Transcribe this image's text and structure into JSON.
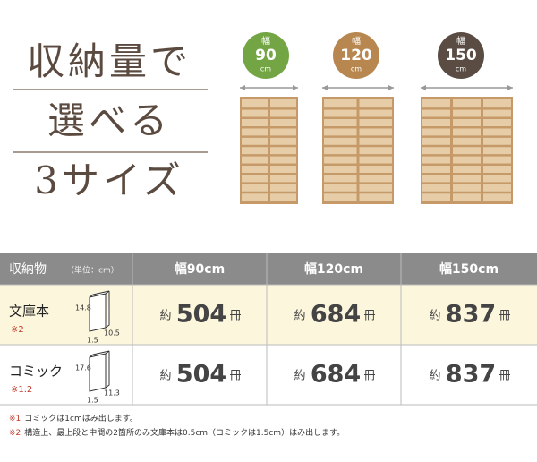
{
  "title": {
    "lines": [
      "収納量で",
      "選べる",
      "3サイズ"
    ]
  },
  "sizes": [
    {
      "label": "幅",
      "width": "90",
      "unit": "cm",
      "color": "#73a545"
    },
    {
      "label": "幅",
      "width": "120",
      "unit": "cm",
      "color": "#b8874f"
    },
    {
      "label": "幅",
      "width": "150",
      "unit": "cm",
      "color": "#5a4b43"
    }
  ],
  "table": {
    "header": {
      "label": "収納物",
      "unit_note": "（単位：cm）",
      "columns": [
        "幅90cm",
        "幅120cm",
        "幅150cm"
      ]
    },
    "rows": [
      {
        "name": "文庫本",
        "note": "※2",
        "height": "14.8",
        "width": "10.5",
        "depth": "1.5",
        "cells": [
          {
            "prefix": "約",
            "count": "504",
            "suffix": "冊"
          },
          {
            "prefix": "約",
            "count": "684",
            "suffix": "冊"
          },
          {
            "prefix": "約",
            "count": "837",
            "suffix": "冊"
          }
        ]
      },
      {
        "name": "コミック",
        "note": "※1.2",
        "height": "17.6",
        "width": "11.3",
        "depth": "1.5",
        "cells": [
          {
            "prefix": "約",
            "count": "504",
            "suffix": "冊"
          },
          {
            "prefix": "約",
            "count": "684",
            "suffix": "冊"
          },
          {
            "prefix": "約",
            "count": "837",
            "suffix": "冊"
          }
        ]
      }
    ]
  },
  "footnotes": [
    {
      "mark": "※1",
      "text": "コミックは1cmはみ出します。"
    },
    {
      "mark": "※2",
      "text": "構造上、最上段と中間の2箇所のみ文庫本は0.5cm（コミックは1.5cm）はみ出します。"
    }
  ]
}
